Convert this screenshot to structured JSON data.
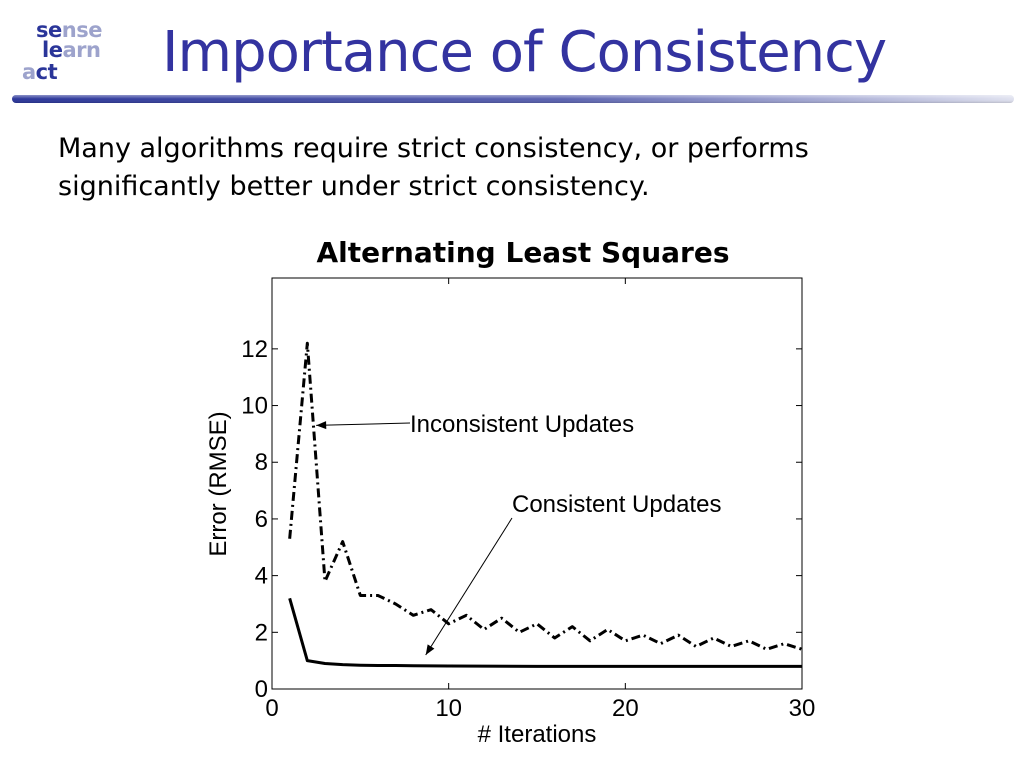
{
  "logo": {
    "row1": [
      {
        "text": "se",
        "tone": "dark"
      },
      {
        "text": "nse",
        "tone": "light"
      }
    ],
    "row2": [
      {
        "text": "le",
        "tone": "dark"
      },
      {
        "text": "arn",
        "tone": "light"
      }
    ],
    "row3": [
      {
        "text": "a",
        "tone": "light"
      },
      {
        "text": "ct",
        "tone": "dark"
      }
    ],
    "colors": {
      "dark": "#2a3599",
      "light": "#9da3cc"
    }
  },
  "slide": {
    "title": "Importance of Consistency",
    "body_line1": "Many algorithms require strict consistency, or performs",
    "body_line2": "significantly better under strict consistency."
  },
  "chart_data": {
    "type": "line",
    "title": "Alternating Least Squares",
    "xlabel": "# Iterations",
    "ylabel": "Error (RMSE)",
    "xlim": [
      0,
      30
    ],
    "ylim": [
      0,
      14.5
    ],
    "xticks": [
      0,
      10,
      20,
      30
    ],
    "yticks": [
      0,
      2,
      4,
      6,
      8,
      10,
      12
    ],
    "grid": false,
    "series": [
      {
        "style": "dash-dot",
        "x": [
          1,
          2,
          3,
          4,
          5,
          6,
          7,
          8,
          9,
          10,
          11,
          12,
          13,
          14,
          15,
          16,
          17,
          18,
          19,
          20,
          21,
          22,
          23,
          24,
          25,
          26,
          27,
          28,
          29,
          30
        ],
        "values": [
          5.3,
          12.2,
          3.8,
          5.2,
          3.3,
          3.3,
          3.0,
          2.6,
          2.8,
          2.3,
          2.6,
          2.1,
          2.5,
          2.0,
          2.3,
          1.8,
          2.2,
          1.7,
          2.1,
          1.7,
          1.9,
          1.6,
          1.9,
          1.5,
          1.8,
          1.5,
          1.7,
          1.4,
          1.6,
          1.4
        ]
      },
      {
        "style": "solid",
        "x": [
          1,
          2,
          3,
          4,
          5,
          6,
          7,
          8,
          10,
          15,
          20,
          25,
          30
        ],
        "values": [
          3.2,
          1.0,
          0.9,
          0.86,
          0.84,
          0.83,
          0.83,
          0.82,
          0.81,
          0.8,
          0.8,
          0.8,
          0.8
        ]
      }
    ],
    "annotations": [
      {
        "text": "Inconsistent Updates",
        "arrow_to": [
          2.5,
          9.3
        ]
      },
      {
        "text": "Consistent Updates",
        "arrow_to": [
          8.7,
          1.2
        ]
      }
    ]
  }
}
